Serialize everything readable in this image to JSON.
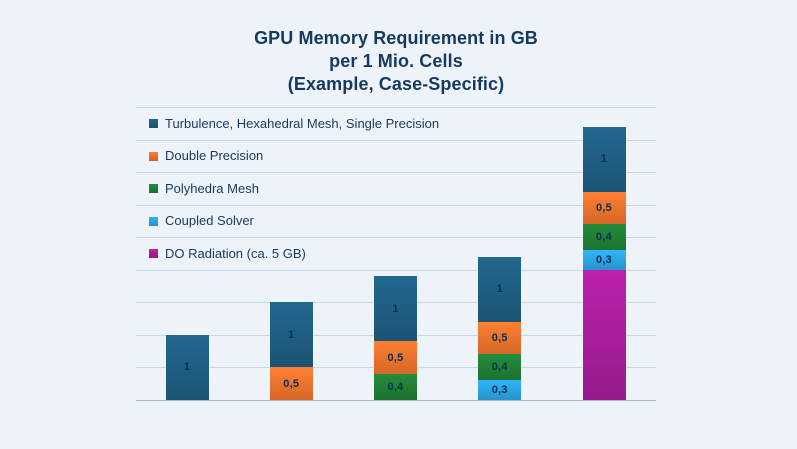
{
  "title": {
    "lines": [
      "GPU Memory Requirement in GB",
      "per 1 Mio. Cells",
      "(Example, Case-Specific)"
    ]
  },
  "colors": {
    "background": "#edf3f9",
    "title_text": "#163a5f",
    "legend_text": "#163a5f",
    "bar_label_text": "#0d2f52",
    "gridline": "#c7d8e8",
    "baseline": "#a3bcd4"
  },
  "chart_data": {
    "type": "bar",
    "stacked": true,
    "orientation": "vertical",
    "title": "GPU Memory Requirement in GB per 1 Mio. Cells (Example, Case-Specific)",
    "xlabel": "",
    "ylabel": "",
    "ylim": [
      0,
      4.5
    ],
    "gridline_step_gb": 0.5,
    "grid": "horizontal-only",
    "axis_tick_labels_visible": false,
    "legend_position": "inside-top-left",
    "series": [
      {
        "name": "Turbulence, Hexahedral Mesh, Single Precision",
        "color": "#1e5b7e",
        "values": [
          1,
          1,
          1,
          1,
          1
        ]
      },
      {
        "name": "Double Precision",
        "color": "#e7702c",
        "values": [
          0,
          0.5,
          0.5,
          0.5,
          0.5
        ]
      },
      {
        "name": "Polyhedra Mesh",
        "color": "#1e7c34",
        "values": [
          0,
          0,
          0.4,
          0.4,
          0.4
        ]
      },
      {
        "name": "Coupled Solver",
        "color": "#2aa0dc",
        "values": [
          0,
          0,
          0,
          0.3,
          0.3
        ]
      },
      {
        "name": "DO Radiation (ca. 5 GB)",
        "color": "#a41d98",
        "values": [
          0,
          0,
          0,
          0,
          5
        ],
        "drawn_gb": [
          0,
          0,
          0,
          0,
          2.0
        ]
      }
    ],
    "bars": [
      {
        "segments": [
          {
            "series": 0,
            "gb": 1,
            "label": "1"
          }
        ]
      },
      {
        "segments": [
          {
            "series": 1,
            "gb": 0.5,
            "label": "0,5"
          },
          {
            "series": 0,
            "gb": 1,
            "label": "1"
          }
        ]
      },
      {
        "segments": [
          {
            "series": 2,
            "gb": 0.4,
            "label": "0,4"
          },
          {
            "series": 1,
            "gb": 0.5,
            "label": "0,5"
          },
          {
            "series": 0,
            "gb": 1,
            "label": "1"
          }
        ]
      },
      {
        "segments": [
          {
            "series": 3,
            "gb": 0.3,
            "label": "0,3"
          },
          {
            "series": 2,
            "gb": 0.4,
            "label": "0,4"
          },
          {
            "series": 1,
            "gb": 0.5,
            "label": "0,5"
          },
          {
            "series": 0,
            "gb": 1,
            "label": "1"
          }
        ]
      },
      {
        "segments": [
          {
            "series": 4,
            "gb": 2.0,
            "label": ""
          },
          {
            "series": 3,
            "gb": 0.3,
            "label": "0,3"
          },
          {
            "series": 2,
            "gb": 0.4,
            "label": "0,4"
          },
          {
            "series": 1,
            "gb": 0.5,
            "label": "0,5"
          },
          {
            "series": 0,
            "gb": 1,
            "label": "1"
          }
        ]
      }
    ],
    "note": "DO Radiation is labeled 'ca. 5 GB' in the legend but its segment is drawn at approximately 2 GB height; segment value labels use comma decimals"
  }
}
